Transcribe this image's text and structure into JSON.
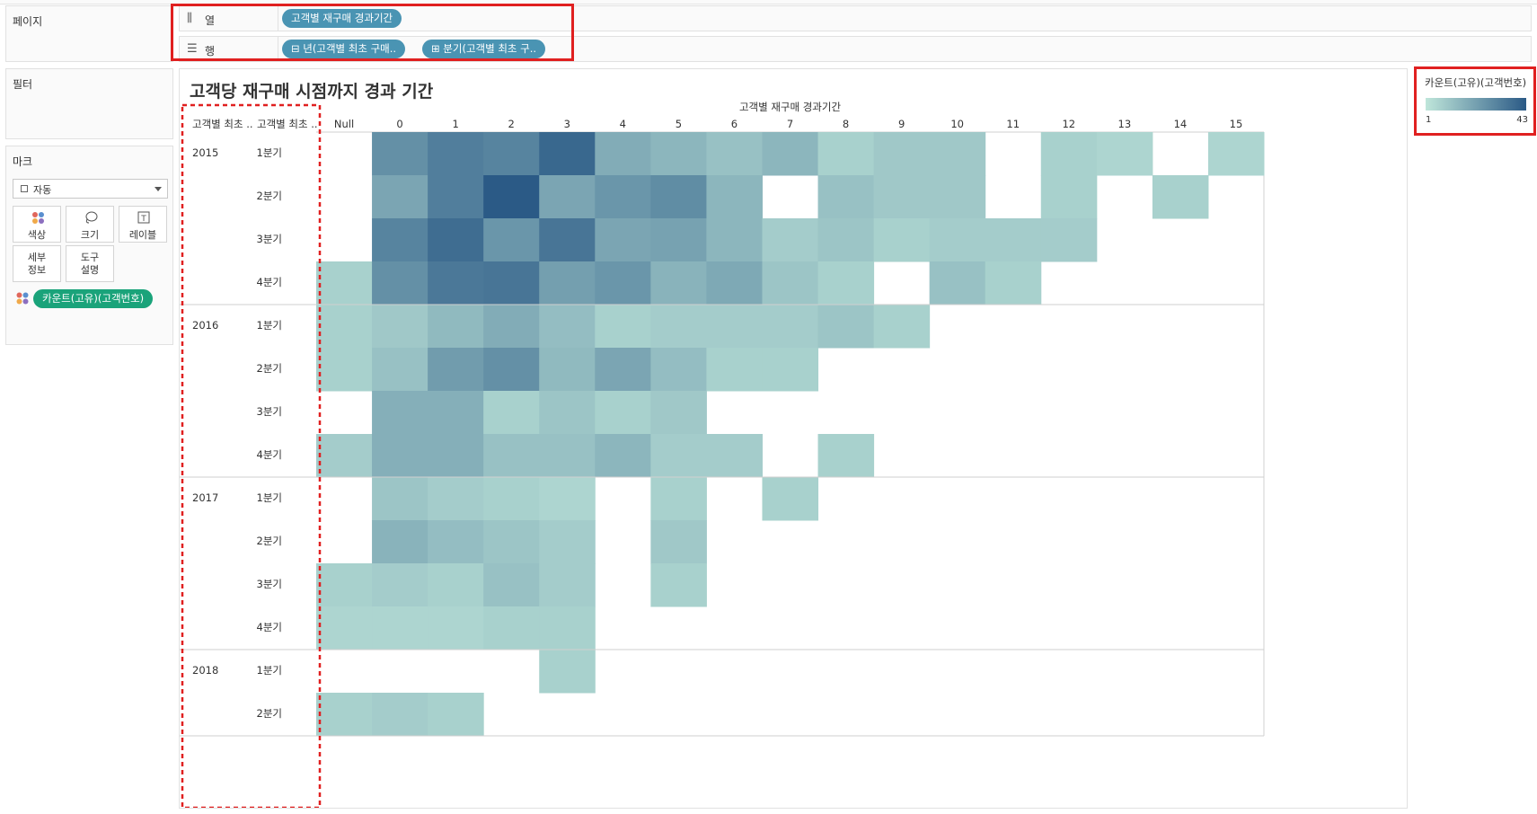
{
  "sidebar": {
    "pages_title": "페이지",
    "filters_title": "필터",
    "marks_title": "마크",
    "mark_type": "자동",
    "mark_buttons": {
      "color": "색상",
      "size": "크기",
      "label": "레이블",
      "detail": "세부\n정보",
      "tooltip": "도구\n설명"
    },
    "color_pill": "카운트(고유)(고객번호)",
    "icons": {
      "color": "color-dots-icon",
      "size": "size-lasso-icon",
      "label": "label-t-icon",
      "shelf_cols": "columns-icon",
      "shelf_rows": "rows-icon"
    }
  },
  "shelves": {
    "columns_label": "열",
    "rows_label": "행",
    "columns_pills": [
      "고객별 재구매 경과기간"
    ],
    "rows_pills": [
      "⊟ 년(고객별 최초 구매..",
      "⊞ 분기(고객별 최초 구.."
    ]
  },
  "view": {
    "title": "고객당 재구매 시점까지 경과 기간"
  },
  "legend": {
    "title": "카운트(고유)(고객번호)",
    "min": "1",
    "max": "43",
    "color_low": "#bfe6da",
    "color_high": "#2b5a86"
  },
  "chart_data": {
    "type": "heatmap",
    "xlabel": "고객별 재구매 경과기간",
    "row_headers": [
      "고객별 최초 ..",
      "고객별 최초 .."
    ],
    "x": [
      "Null",
      "0",
      "1",
      "2",
      "3",
      "4",
      "5",
      "6",
      "7",
      "8",
      "9",
      "10",
      "11",
      "12",
      "13",
      "14",
      "15"
    ],
    "years": [
      "2015",
      "2016",
      "2017",
      "2018"
    ],
    "rows": [
      {
        "year": "2015",
        "quarter": "1분기",
        "values": [
          null,
          24,
          30,
          28,
          38,
          15,
          12,
          9,
          12,
          5,
          7,
          7,
          null,
          5,
          4,
          null,
          4
        ]
      },
      {
        "year": "2015",
        "quarter": "2분기",
        "values": [
          null,
          17,
          30,
          43,
          17,
          22,
          25,
          12,
          null,
          9,
          7,
          7,
          null,
          5,
          null,
          5,
          null
        ]
      },
      {
        "year": "2015",
        "quarter": "3분기",
        "values": [
          null,
          28,
          36,
          22,
          33,
          17,
          18,
          12,
          6,
          8,
          5,
          6,
          6,
          6,
          null,
          null,
          null
        ]
      },
      {
        "year": "2015",
        "quarter": "4분기",
        "values": [
          5,
          24,
          32,
          33,
          19,
          22,
          13,
          16,
          8,
          5,
          null,
          9,
          5,
          null,
          null,
          null,
          null
        ]
      },
      {
        "year": "2016",
        "quarter": "1분기",
        "values": [
          5,
          7,
          11,
          15,
          10,
          5,
          6,
          6,
          6,
          8,
          5,
          null,
          null,
          null,
          null,
          null,
          null
        ]
      },
      {
        "year": "2016",
        "quarter": "2분기",
        "values": [
          5,
          9,
          20,
          24,
          11,
          17,
          10,
          5,
          5,
          null,
          null,
          null,
          null,
          null,
          null,
          null,
          null
        ]
      },
      {
        "year": "2016",
        "quarter": "3분기",
        "values": [
          null,
          14,
          14,
          5,
          8,
          5,
          7,
          null,
          null,
          null,
          null,
          null,
          null,
          null,
          null,
          null,
          null
        ]
      },
      {
        "year": "2016",
        "quarter": "4분기",
        "values": [
          6,
          14,
          14,
          9,
          9,
          12,
          6,
          6,
          null,
          5,
          null,
          null,
          null,
          null,
          null,
          null,
          null
        ]
      },
      {
        "year": "2017",
        "quarter": "1분기",
        "values": [
          null,
          8,
          6,
          5,
          4,
          null,
          5,
          null,
          5,
          null,
          null,
          null,
          null,
          null,
          null,
          null,
          null
        ]
      },
      {
        "year": "2017",
        "quarter": "2분기",
        "values": [
          null,
          13,
          10,
          8,
          6,
          null,
          7,
          null,
          null,
          null,
          null,
          null,
          null,
          null,
          null,
          null,
          null
        ]
      },
      {
        "year": "2017",
        "quarter": "3분기",
        "values": [
          5,
          6,
          5,
          9,
          6,
          null,
          5,
          null,
          null,
          null,
          null,
          null,
          null,
          null,
          null,
          null,
          null
        ]
      },
      {
        "year": "2017",
        "quarter": "4분기",
        "values": [
          4,
          4,
          4,
          5,
          5,
          null,
          null,
          null,
          null,
          null,
          null,
          null,
          null,
          null,
          null,
          null,
          null
        ]
      },
      {
        "year": "2018",
        "quarter": "1분기",
        "values": [
          null,
          null,
          null,
          null,
          5,
          null,
          null,
          null,
          null,
          null,
          null,
          null,
          null,
          null,
          null,
          null,
          null
        ]
      },
      {
        "year": "2018",
        "quarter": "2분기",
        "values": [
          5,
          6,
          5,
          null,
          null,
          null,
          null,
          null,
          null,
          null,
          null,
          null,
          null,
          null,
          null,
          null,
          null
        ]
      }
    ]
  }
}
